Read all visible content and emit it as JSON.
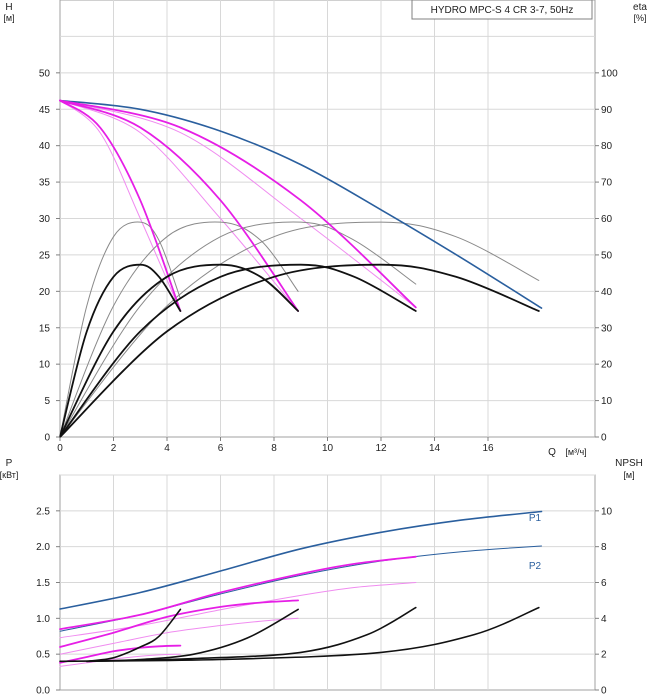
{
  "chart_data": [
    {
      "type": "line",
      "title": "HYDRO MPC-S 4 CR 3-7, 50Hz",
      "y_label": "H",
      "y_unit": "[м]",
      "y2_label": "eta",
      "y2_unit": "[%]",
      "x_label": "Q",
      "x_unit": "[м³/ч]",
      "xlim": [
        0,
        20
      ],
      "ylim": [
        0,
        60
      ],
      "y2lim": [
        0,
        120
      ],
      "x_ticks": [
        "0",
        "2",
        "4",
        "6",
        "8",
        "10",
        "12",
        "14",
        "16"
      ],
      "y_ticks": [
        "0",
        "5",
        "10",
        "15",
        "20",
        "25",
        "30",
        "35",
        "40",
        "45",
        "50"
      ],
      "y2_ticks": [
        "0",
        "10",
        "20",
        "30",
        "40",
        "50",
        "60",
        "70",
        "80",
        "90",
        "100"
      ],
      "grid": true,
      "colors": {
        "head_max": "#2a5f9e",
        "head_pumps": "#e61ee6",
        "head_thin": "#f08cf0",
        "efficiency": "#111111",
        "efficiency_thin": "#8a8a8a"
      },
      "series": [
        {
          "role": "head-max",
          "axis": "left",
          "x": [
            0,
            3,
            6,
            9,
            12,
            15,
            18
          ],
          "y": [
            46.2,
            45,
            42,
            37.4,
            31.2,
            24.6,
            17.7
          ]
        },
        {
          "role": "head-1",
          "axis": "left",
          "x": [
            0,
            1.5,
            3,
            4.5
          ],
          "y": [
            46.2,
            42.5,
            32.5,
            17.3
          ]
        },
        {
          "role": "head-2",
          "axis": "left",
          "x": [
            0,
            3,
            6,
            8.9
          ],
          "y": [
            46.2,
            42.5,
            32.5,
            17.3
          ]
        },
        {
          "role": "head-3",
          "axis": "left",
          "x": [
            0,
            4.5,
            9,
            13.3
          ],
          "y": [
            46.2,
            42.5,
            32.5,
            17.8
          ]
        },
        {
          "role": "head-1-thin",
          "axis": "left",
          "x": [
            0,
            1.5,
            3,
            4.5
          ],
          "y": [
            46.2,
            41.8,
            30,
            17.3
          ]
        },
        {
          "role": "head-2-thin",
          "axis": "left",
          "x": [
            0,
            3,
            6,
            8.9
          ],
          "y": [
            46.2,
            41.8,
            30,
            17.3
          ]
        },
        {
          "role": "head-3-thin",
          "axis": "left",
          "x": [
            0,
            4.5,
            9,
            13.3
          ],
          "y": [
            46.2,
            41.8,
            30,
            17.8
          ]
        },
        {
          "role": "eta-1",
          "axis": "right",
          "x": [
            0,
            1,
            2,
            3,
            3.7,
            4.5
          ],
          "y": [
            0,
            29,
            44,
            47.3,
            44,
            34.6
          ]
        },
        {
          "role": "eta-2",
          "axis": "right",
          "x": [
            0,
            2,
            4,
            6,
            7.5,
            8.9
          ],
          "y": [
            0,
            29,
            44,
            47.3,
            44,
            34.6
          ]
        },
        {
          "role": "eta-3",
          "axis": "right",
          "x": [
            0,
            3,
            6,
            9,
            11,
            13.3
          ],
          "y": [
            0,
            29,
            44,
            47.3,
            44,
            34.6
          ]
        },
        {
          "role": "eta-4",
          "axis": "right",
          "x": [
            0,
            4,
            8,
            12,
            14.8,
            17.9
          ],
          "y": [
            0,
            29,
            44,
            47.3,
            44,
            34.6
          ]
        },
        {
          "role": "eta-1-thin",
          "axis": "right",
          "x": [
            0,
            1,
            2,
            3,
            3.7,
            4.5
          ],
          "y": [
            0,
            36,
            55,
            59,
            54,
            38
          ]
        },
        {
          "role": "eta-2-thin",
          "axis": "right",
          "x": [
            0,
            2,
            4,
            6,
            7.5,
            8.9
          ],
          "y": [
            0,
            36,
            55,
            59,
            54,
            40
          ]
        },
        {
          "role": "eta-3-thin",
          "axis": "right",
          "x": [
            0,
            3,
            6,
            9,
            11,
            13.3
          ],
          "y": [
            0,
            36,
            55,
            59,
            54,
            42
          ]
        },
        {
          "role": "eta-4-thin",
          "axis": "right",
          "x": [
            0,
            4,
            8,
            12,
            14.8,
            17.9
          ],
          "y": [
            0,
            36,
            55,
            59,
            55,
            43
          ]
        }
      ]
    },
    {
      "type": "line",
      "y_label": "P",
      "y_unit": "[кВт]",
      "y2_label": "NPSH",
      "y2_unit": "[м]",
      "xlim": [
        0,
        20
      ],
      "ylim": [
        0,
        3
      ],
      "y2lim": [
        0,
        12
      ],
      "y_ticks": [
        "0.0",
        "0.5",
        "1.0",
        "1.5",
        "2.0",
        "2.5"
      ],
      "y2_ticks": [
        "0",
        "2",
        "4",
        "6",
        "8",
        "10"
      ],
      "grid": true,
      "annotations": [
        "P1",
        "P2"
      ],
      "series": [
        {
          "name": "P1",
          "role": "power-p1",
          "axis": "left",
          "x": [
            0,
            3,
            6,
            9,
            12,
            15,
            18
          ],
          "y": [
            1.13,
            1.36,
            1.66,
            1.97,
            2.2,
            2.37,
            2.49
          ]
        },
        {
          "name": "P2",
          "role": "power-p2",
          "axis": "left",
          "x": [
            0,
            3,
            6,
            9,
            12,
            15,
            18
          ],
          "y": [
            0.82,
            1.05,
            1.34,
            1.6,
            1.8,
            1.93,
            2.01
          ]
        },
        {
          "role": "power-p1-3",
          "axis": "left",
          "x": [
            0,
            3,
            6,
            9,
            11,
            13.3
          ],
          "y": [
            0.85,
            1.05,
            1.36,
            1.62,
            1.76,
            1.86
          ]
        },
        {
          "role": "power-p1-2",
          "axis": "left",
          "x": [
            0,
            2,
            4,
            6,
            7.5,
            8.9
          ],
          "y": [
            0.6,
            0.8,
            1.02,
            1.16,
            1.22,
            1.25
          ]
        },
        {
          "role": "power-p1-1",
          "axis": "left",
          "x": [
            0,
            1,
            2,
            3,
            3.7,
            4.5
          ],
          "y": [
            0.38,
            0.46,
            0.54,
            0.59,
            0.61,
            0.62
          ]
        },
        {
          "role": "power-p2-3",
          "axis": "left",
          "x": [
            0,
            3,
            6,
            9,
            11,
            13.3
          ],
          "y": [
            0.73,
            0.9,
            1.12,
            1.32,
            1.43,
            1.5
          ]
        },
        {
          "role": "power-p2-2",
          "axis": "left",
          "x": [
            0,
            2,
            4,
            6,
            7.5,
            8.9
          ],
          "y": [
            0.5,
            0.65,
            0.8,
            0.9,
            0.96,
            1.0
          ]
        },
        {
          "role": "power-p2-1",
          "axis": "left",
          "x": [
            0,
            1,
            2,
            3,
            3.7,
            4.5
          ],
          "y": [
            0.33,
            0.38,
            0.43,
            0.47,
            0.49,
            0.5
          ]
        },
        {
          "role": "npsh-1",
          "axis": "right",
          "x": [
            1,
            2,
            3,
            3.7,
            4.5
          ],
          "y": [
            1.6,
            1.8,
            2.4,
            3.0,
            4.5
          ]
        },
        {
          "role": "npsh-2",
          "axis": "right",
          "x": [
            1,
            3,
            5,
            7,
            8.9
          ],
          "y": [
            1.6,
            1.7,
            2.0,
            2.9,
            4.5
          ]
        },
        {
          "role": "npsh-3",
          "axis": "right",
          "x": [
            1,
            5,
            9,
            11.5,
            13.3
          ],
          "y": [
            1.6,
            1.75,
            2.1,
            3.1,
            4.6
          ]
        },
        {
          "role": "npsh-4",
          "axis": "right",
          "x": [
            0,
            6,
            12,
            15.5,
            17.9
          ],
          "y": [
            1.6,
            1.7,
            2.1,
            3.1,
            4.6
          ]
        }
      ]
    }
  ]
}
